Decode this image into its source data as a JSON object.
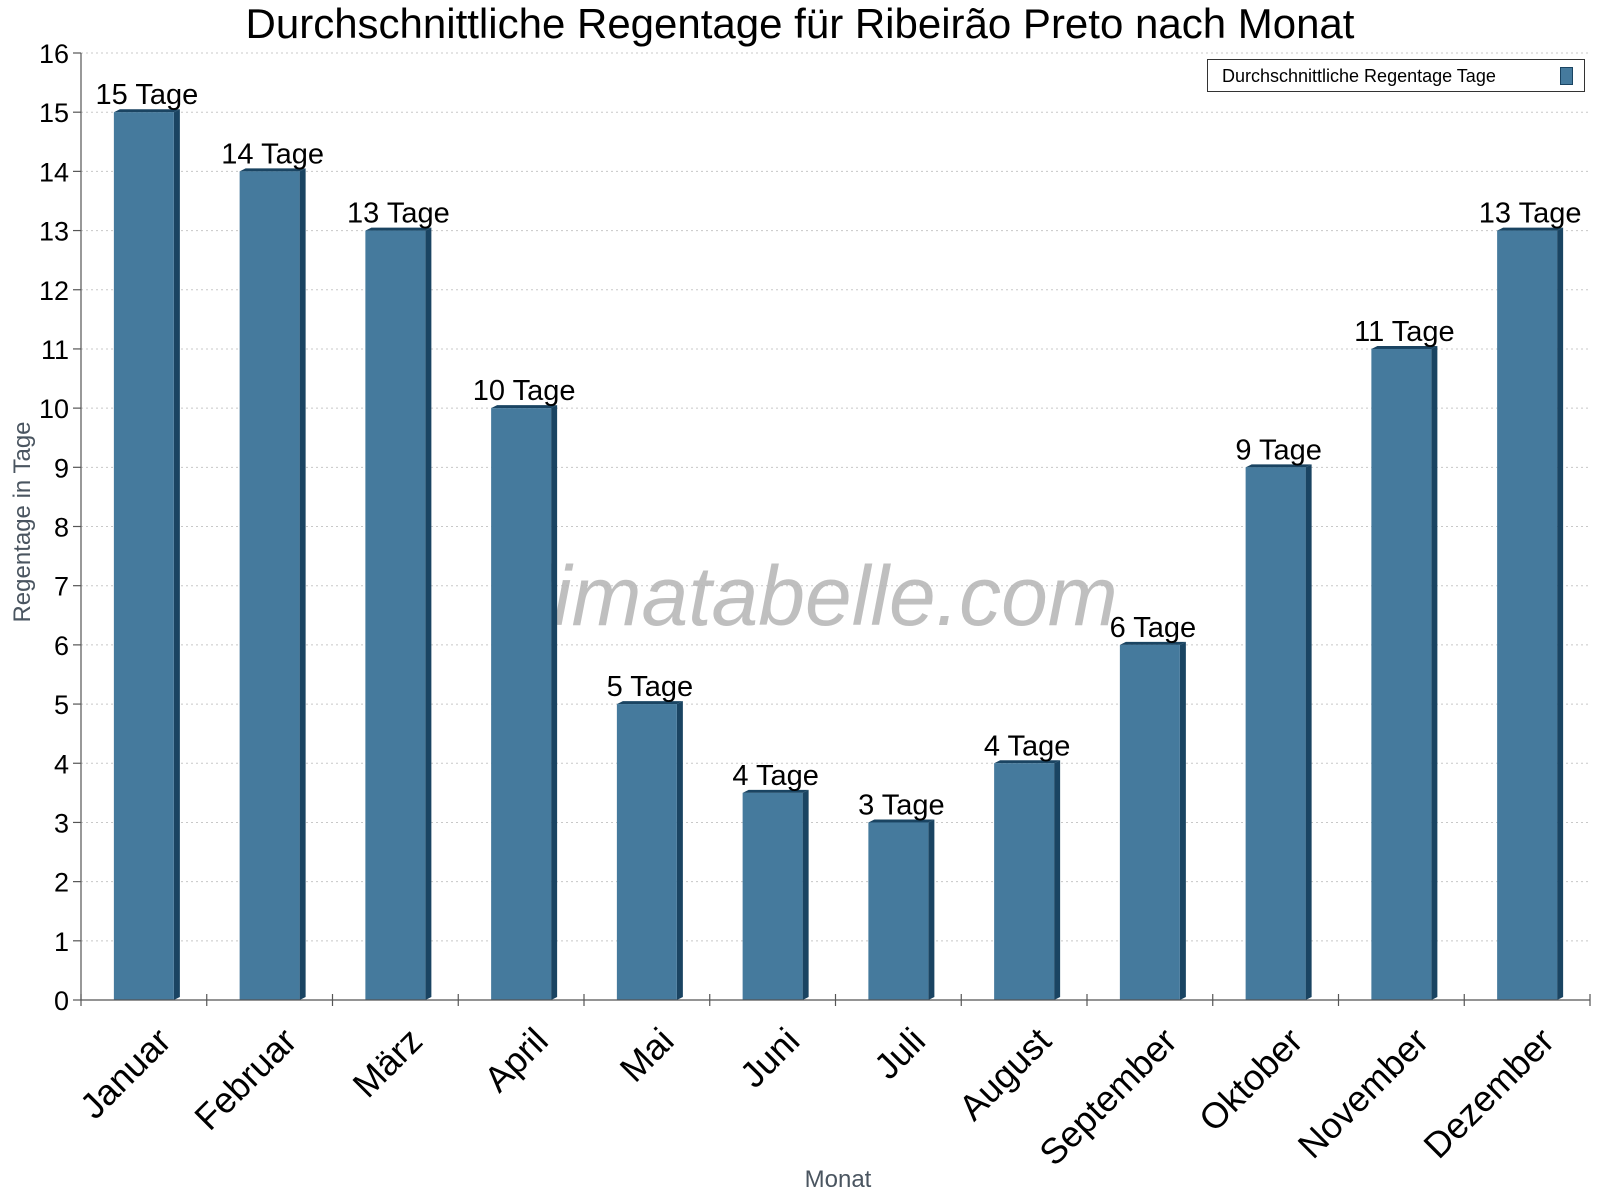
{
  "chart_data": {
    "type": "bar",
    "title": "Durchschnittliche Regentage für Ribeirão Preto nach Monat",
    "xlabel": "Monat",
    "ylabel": "Regentage in Tage",
    "ylim": [
      0,
      16
    ],
    "yticks": [
      0,
      1,
      2,
      3,
      4,
      5,
      6,
      7,
      8,
      9,
      10,
      11,
      12,
      13,
      14,
      15,
      16
    ],
    "grid": true,
    "legend_position": "top-right",
    "categories": [
      "Januar",
      "Februar",
      "März",
      "April",
      "Mai",
      "Juni",
      "Juli",
      "August",
      "September",
      "Oktober",
      "November",
      "Dezember"
    ],
    "series": [
      {
        "name": "Durchschnittliche Regentage Tage",
        "values": [
          15,
          14,
          13,
          10,
          5,
          3.5,
          3,
          4,
          6,
          9,
          11,
          13
        ],
        "labels": [
          "15 Tage",
          "14 Tage",
          "13 Tage",
          "10 Tage",
          "5 Tage",
          "4 Tage",
          "3 Tage",
          "4 Tage",
          "6 Tage",
          "9 Tage",
          "11 Tage",
          "13 Tage"
        ],
        "color": "#457a9d",
        "edge_color": "#1a4462"
      }
    ]
  },
  "watermark": "klimatabelle.com"
}
